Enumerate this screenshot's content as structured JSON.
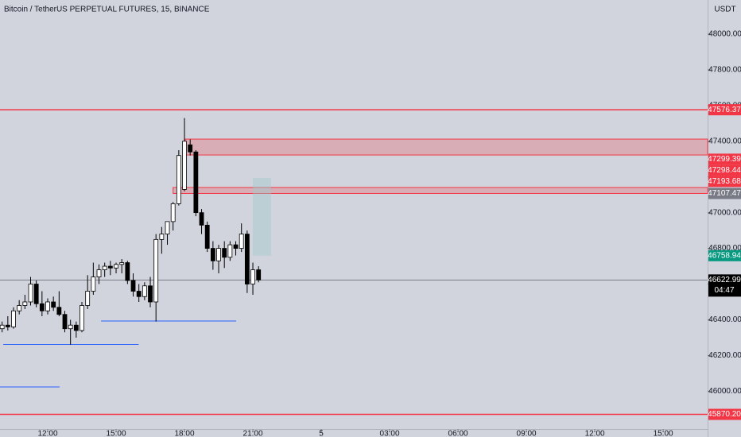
{
  "chart_data": {
    "type": "candlestick",
    "title": "Bitcoin / TetherUS PERPETUAL FUTURES, 15, BINANCE",
    "y_axis_label": "USDT",
    "x": [
      10.0,
      10.25,
      10.5,
      10.75,
      11.0,
      11.25,
      11.5,
      11.75,
      12.0,
      12.25,
      12.5,
      12.75,
      13.0,
      13.25,
      13.5,
      13.75,
      14.0,
      14.25,
      14.5,
      14.75,
      15.0,
      15.25,
      15.5,
      15.75,
      16.0,
      16.25,
      16.5,
      16.75,
      17.0,
      17.25,
      17.5,
      17.75,
      18.0,
      18.25,
      18.5,
      18.75,
      19.0,
      19.25,
      19.5,
      19.75,
      20.0,
      20.25,
      20.5,
      20.75,
      21.0,
      21.25
    ],
    "open": [
      46350,
      46370,
      46360,
      46450,
      46480,
      46500,
      46600,
      46490,
      46450,
      46500,
      46470,
      46430,
      46350,
      46370,
      46340,
      46480,
      46560,
      46640,
      46680,
      46700,
      46690,
      46710,
      46720,
      46620,
      46560,
      46530,
      46590,
      46500,
      46850,
      46880,
      46950,
      47050,
      47130,
      47380,
      47340,
      47000,
      46930,
      46800,
      46730,
      46800,
      46750,
      46820,
      46800,
      46880,
      46600,
      46680
    ],
    "high": [
      46390,
      46420,
      46470,
      46510,
      46540,
      46640,
      46620,
      46560,
      46520,
      46530,
      46560,
      46450,
      46400,
      46390,
      46500,
      46650,
      46720,
      46710,
      46720,
      46730,
      46720,
      46740,
      46730,
      46660,
      46600,
      46610,
      46640,
      46880,
      46920,
      46950,
      47060,
      47350,
      47530,
      47410,
      47350,
      47020,
      46950,
      46840,
      46820,
      46840,
      46840,
      46840,
      46940,
      46900,
      46720,
      46700
    ],
    "low": [
      46330,
      46340,
      46350,
      46430,
      46460,
      46480,
      46470,
      46420,
      46430,
      46450,
      46420,
      46330,
      46260,
      46300,
      46330,
      46460,
      46540,
      46600,
      46640,
      46650,
      46660,
      46660,
      46600,
      46530,
      46500,
      46510,
      46470,
      46390,
      46770,
      46820,
      46900,
      47040,
      47120,
      47320,
      46980,
      46880,
      46780,
      46680,
      46660,
      46690,
      46730,
      46760,
      46780,
      46550,
      46540,
      46610
    ],
    "close": [
      46370,
      46360,
      46450,
      46480,
      46500,
      46600,
      46490,
      46450,
      46500,
      46470,
      46430,
      46350,
      46370,
      46340,
      46480,
      46560,
      46640,
      46680,
      46700,
      46690,
      46710,
      46720,
      46620,
      46560,
      46530,
      46590,
      46500,
      46850,
      46880,
      46950,
      47050,
      47320,
      47400,
      47340,
      47000,
      46930,
      46800,
      46730,
      46800,
      46750,
      46820,
      46800,
      46880,
      46600,
      46680,
      46622.99
    ],
    "up_color": "#ffffff",
    "down_color": "#000000",
    "wick_color": "#000000",
    "xlim": [
      9.907,
      40.95
    ],
    "xticks": [
      {
        "value": 12,
        "label": "12:00"
      },
      {
        "value": 15,
        "label": "15:00"
      },
      {
        "value": 18,
        "label": "18:00"
      },
      {
        "value": 21,
        "label": "21:00"
      },
      {
        "value": 24,
        "label": "5"
      },
      {
        "value": 27,
        "label": "03:00"
      },
      {
        "value": 30,
        "label": "06:00"
      },
      {
        "value": 33,
        "label": "09:00"
      },
      {
        "value": 36,
        "label": "12:00"
      },
      {
        "value": 39,
        "label": "15:00"
      }
    ],
    "ylim": [
      45788,
      48191
    ],
    "yticks": [
      {
        "value": 46000,
        "label": "46000.00"
      },
      {
        "value": 46200,
        "label": "46200.00"
      },
      {
        "value": 46400,
        "label": "46400.00"
      },
      {
        "value": 46600,
        "label": "46600.00"
      },
      {
        "value": 46800,
        "label": "46800.00"
      },
      {
        "value": 47000,
        "label": "47000.00"
      },
      {
        "value": 47200,
        "label": "47200.00"
      },
      {
        "value": 47400,
        "label": "47400.00"
      },
      {
        "value": 47600,
        "label": "47600.00"
      },
      {
        "value": 47800,
        "label": "47800.00"
      },
      {
        "value": 48000,
        "label": "48000.00"
      }
    ],
    "hlines": [
      {
        "value": 47576.37,
        "color": "#f23645"
      },
      {
        "value": 45870.2,
        "color": "#f23645"
      },
      {
        "value": 46262,
        "color": "#2962ff",
        "x_start": 10.05,
        "x_end": 15.99
      },
      {
        "value": 46393,
        "color": "#2962ff",
        "x_start": 14.34,
        "x_end": 20.27
      },
      {
        "value": 46024,
        "color": "#2962ff",
        "x_start": 9.907,
        "x_end": 12.52
      }
    ],
    "zones": [
      {
        "top": 47412,
        "bottom": 47323,
        "x_start": 18.03,
        "color": "#f23645"
      },
      {
        "top": 47141,
        "bottom": 47107.47,
        "x_start": 17.5,
        "color": "#f23645"
      }
    ],
    "position": {
      "top": 47193.68,
      "bottom": 46758.94,
      "x_start": 21.0,
      "x_end": 21.8
    },
    "price_labels": [
      {
        "value": 47576.37,
        "label": "47576.37",
        "color": "#f23645"
      },
      {
        "value": 47299.39,
        "label": "47299.39",
        "color": "#f23645"
      },
      {
        "value": 47298.44,
        "label": "47298.44",
        "color": "#f23645"
      },
      {
        "value": 47193.68,
        "label": "47193.68",
        "color": "#f23645"
      },
      {
        "value": 47107.47,
        "label": "47107.47",
        "color": "#787b86"
      },
      {
        "value": 46758.94,
        "label": "46758.94",
        "color": "#089981"
      },
      {
        "value": 45870.2,
        "label": "45870.20",
        "color": "#f23645"
      }
    ],
    "current_price": {
      "value": 46622.99,
      "label": "46622.99",
      "countdown": "04:47"
    }
  }
}
